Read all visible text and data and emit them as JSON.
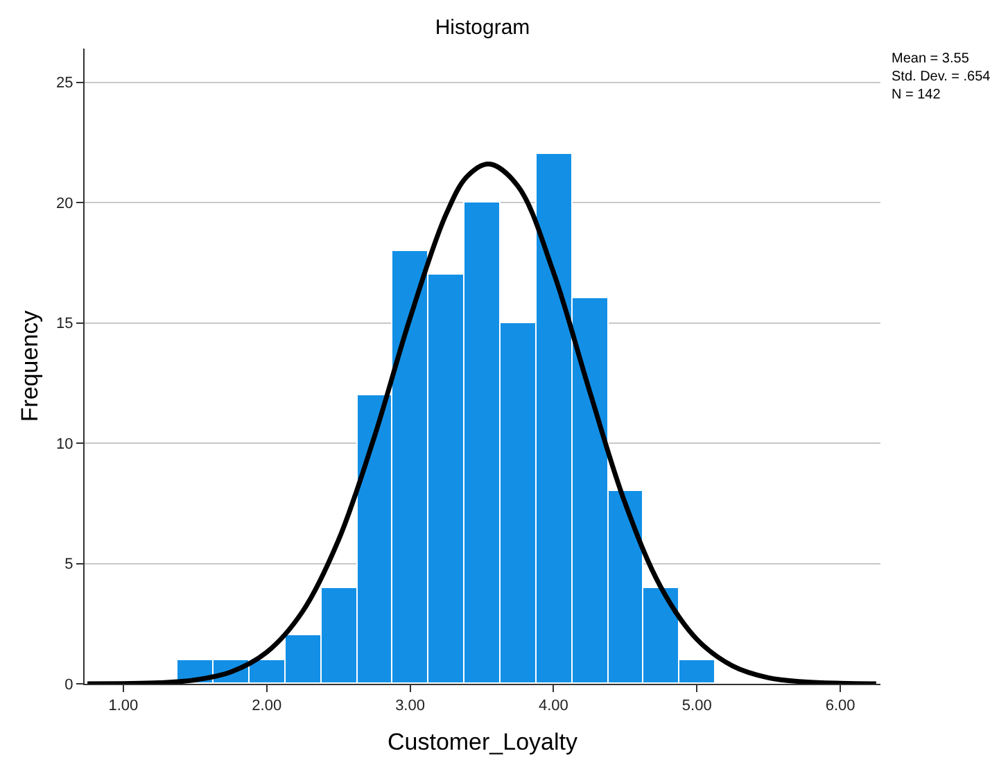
{
  "chart_data": {
    "type": "histogram",
    "title": "Histogram",
    "xlabel": "Customer_Loyalty",
    "ylabel": "Frequency",
    "bins": [
      1.38,
      1.63,
      1.88,
      2.13,
      2.38,
      2.63,
      2.88,
      3.13,
      3.38,
      3.63,
      3.88,
      4.13,
      4.38,
      4.63,
      4.88,
      5.13
    ],
    "values": [
      1,
      1,
      1,
      2,
      4,
      12,
      18,
      17,
      20,
      15,
      22,
      16,
      8,
      4,
      1
    ],
    "color": "#1390e6",
    "series": [
      {
        "type": "line",
        "color": "#000000",
        "x": [
          0.75,
          1.0,
          1.25,
          1.5,
          1.75,
          2.0,
          2.25,
          2.5,
          2.75,
          3.0,
          3.25,
          3.4,
          3.55,
          3.75,
          4.0,
          4.25,
          4.5,
          4.75,
          5.0,
          5.25,
          5.5,
          5.75,
          6.0,
          6.25
        ],
        "values": [
          0.0,
          0.01,
          0.04,
          0.16,
          0.49,
          1.31,
          3.0,
          5.96,
          10.25,
          15.2,
          19.5,
          21.1,
          21.6,
          20.7,
          17.1,
          12.2,
          7.5,
          4.0,
          1.85,
          0.74,
          0.25,
          0.08,
          0.02,
          0.0
        ]
      }
    ],
    "xlim": [
      0.73,
      6.28
    ],
    "xticks": [
      {
        "value": 1,
        "label": "1.00"
      },
      {
        "value": 2,
        "label": "2.00"
      },
      {
        "value": 3,
        "label": "3.00"
      },
      {
        "value": 4,
        "label": "4.00"
      },
      {
        "value": 5,
        "label": "5.00"
      },
      {
        "value": 6,
        "label": "6.00"
      }
    ],
    "ylim": [
      0,
      26.4
    ],
    "yticks": [
      0,
      5,
      10,
      15,
      20,
      25
    ],
    "grid": "y",
    "annotations": [
      "Mean = 3.55\nStd. Dev. = .654\nN = 142"
    ]
  }
}
